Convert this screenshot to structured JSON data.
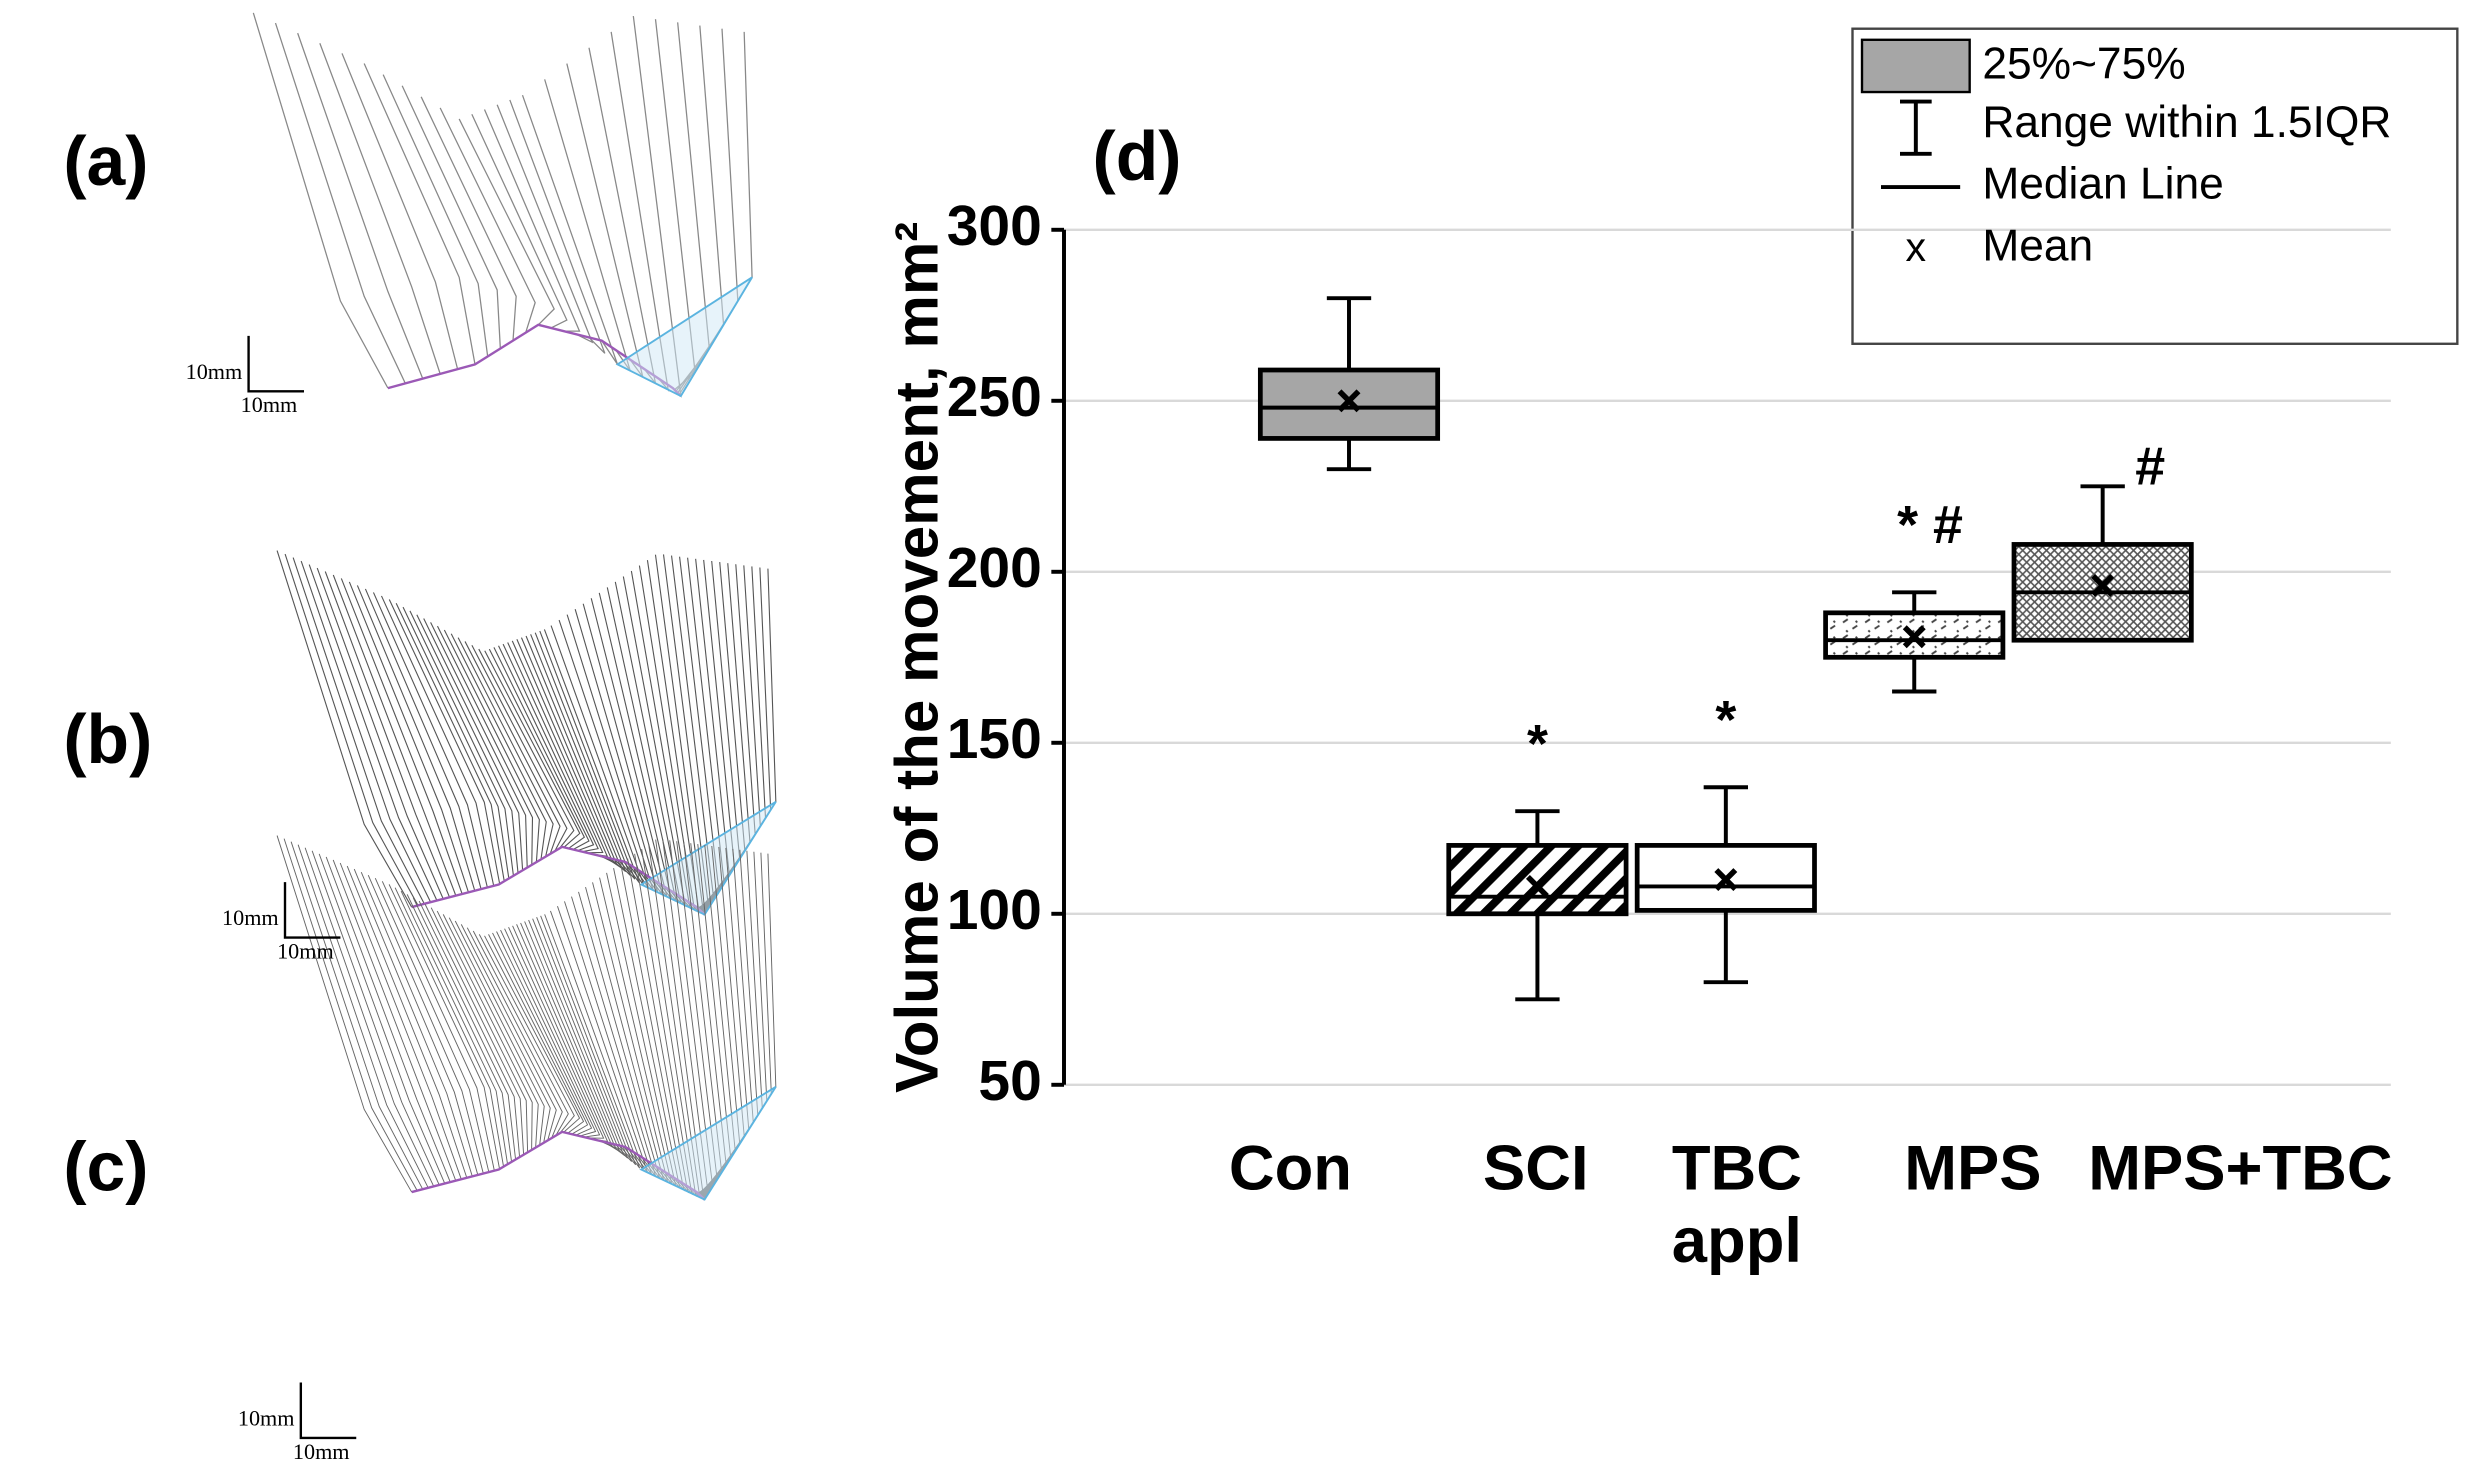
{
  "chart_data": {
    "type": "box",
    "panel_label": "(d)",
    "ylabel": "Volume of the movement, mm²",
    "categories": [
      "Con",
      "SCI",
      "TBC appl",
      "MPS",
      "MPS+TBC"
    ],
    "whislo": [
      230,
      75,
      80,
      165,
      180
    ],
    "q1": [
      239,
      100,
      101,
      175,
      180
    ],
    "median": [
      248,
      105,
      108,
      180,
      194
    ],
    "q3": [
      259,
      120,
      120,
      188,
      208
    ],
    "whishi": [
      280,
      130,
      137,
      194,
      225
    ],
    "mean": [
      250,
      108,
      110,
      181,
      196
    ],
    "fills": [
      "solid",
      "hatch",
      "none",
      "dots",
      "cross"
    ],
    "color": "#a6a6a6",
    "ylim": [
      50,
      300
    ],
    "yticks": [
      50,
      100,
      150,
      200,
      250,
      300
    ],
    "grid": true,
    "legend": {
      "position": "upper right",
      "items": [
        "25%~75%",
        "Range within 1.5IQR",
        "Median Line",
        "Mean"
      ],
      "mean_symbol": "x"
    },
    "annotations": [
      {
        "text": "*",
        "category": "SCI"
      },
      {
        "text": "*",
        "category": "TBC appl"
      },
      {
        "text": "* #",
        "category": "MPS"
      },
      {
        "text": "#",
        "category": "MPS+TBC"
      }
    ]
  },
  "panels": [
    {
      "label": "(a)",
      "scale_x": "10mm",
      "scale_y": "10mm"
    },
    {
      "label": "(b)",
      "scale_x": "10mm",
      "scale_y": "10mm"
    },
    {
      "label": "(c)",
      "scale_x": "10mm",
      "scale_y": "10mm"
    }
  ]
}
